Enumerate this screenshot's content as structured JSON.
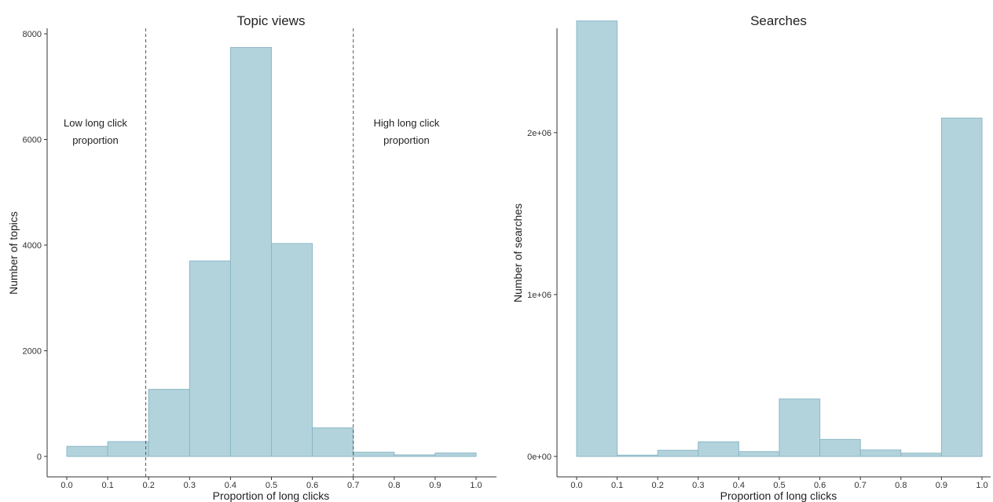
{
  "chart_data": [
    {
      "type": "bar",
      "title": "Topic views",
      "xlabel": "Proportion of long clicks",
      "ylabel": "Number of topics",
      "bins": [
        [
          0.0,
          0.1
        ],
        [
          0.1,
          0.2
        ],
        [
          0.2,
          0.3
        ],
        [
          0.3,
          0.4
        ],
        [
          0.4,
          0.5
        ],
        [
          0.5,
          0.6
        ],
        [
          0.6,
          0.7
        ],
        [
          0.7,
          0.8
        ],
        [
          0.8,
          0.9
        ],
        [
          0.9,
          1.0
        ]
      ],
      "values": [
        190,
        280,
        1270,
        3700,
        7740,
        4030,
        540,
        80,
        30,
        65
      ],
      "xlim": [
        0.0,
        1.0
      ],
      "ylim": [
        0,
        8000
      ],
      "xticks": [
        "0.0",
        "0.1",
        "0.2",
        "0.3",
        "0.4",
        "0.5",
        "0.6",
        "0.7",
        "0.8",
        "0.9",
        "1.0"
      ],
      "yticks": [
        0,
        2000,
        4000,
        6000,
        8000
      ],
      "ytick_labels": [
        "0",
        "2000",
        "4000",
        "6000",
        "8000"
      ],
      "vlines": [
        0.193,
        0.7
      ],
      "annotations": [
        {
          "lines": [
            "Low long click",
            "proportion"
          ],
          "x": 0.07,
          "y": 5950
        },
        {
          "lines": [
            "High long click",
            "proportion"
          ],
          "x": 0.83,
          "y": 5950
        }
      ],
      "grid": false
    },
    {
      "type": "bar",
      "title": "Searches",
      "xlabel": "Proportion of long clicks",
      "ylabel": "Number of searches",
      "bins": [
        [
          0.0,
          0.1
        ],
        [
          0.1,
          0.2
        ],
        [
          0.2,
          0.3
        ],
        [
          0.3,
          0.4
        ],
        [
          0.4,
          0.5
        ],
        [
          0.5,
          0.6
        ],
        [
          0.6,
          0.7
        ],
        [
          0.7,
          0.8
        ],
        [
          0.8,
          0.9
        ],
        [
          0.9,
          1.0
        ]
      ],
      "values": [
        2690000,
        8000,
        38000,
        90000,
        30000,
        355000,
        105000,
        40000,
        20000,
        2090000
      ],
      "xlim": [
        0.0,
        1.0
      ],
      "ylim": [
        0,
        2800000
      ],
      "xticks": [
        "0.0",
        "0.1",
        "0.2",
        "0.3",
        "0.4",
        "0.5",
        "0.6",
        "0.7",
        "0.8",
        "0.9",
        "1.0"
      ],
      "yticks": [
        0,
        1000000,
        2000000
      ],
      "ytick_labels": [
        "0e+00",
        "1e+06",
        "2e+06"
      ],
      "vlines": [],
      "annotations": [],
      "grid": false
    }
  ]
}
